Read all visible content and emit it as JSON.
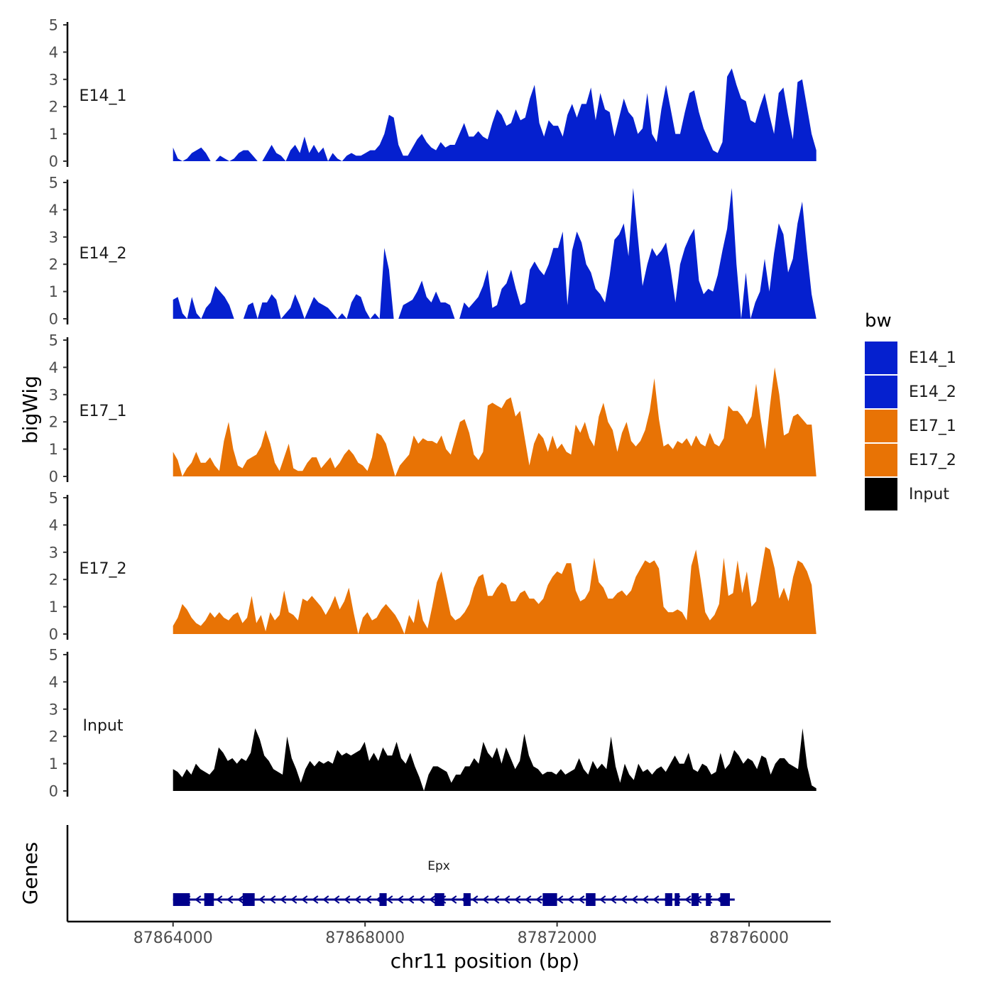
{
  "chart_data": {
    "type": "area",
    "chromosome": "chr11",
    "xlabel": "chr11 position (bp)",
    "ylabel": "bigWig",
    "genes_label": "Genes",
    "xlim": [
      87861800,
      87877700
    ],
    "data_range": [
      87864000,
      87877400
    ],
    "x_ticks": [
      87864000,
      87868000,
      87872000,
      87876000
    ],
    "x_tick_labels": [
      "87864000",
      "87868000",
      "87872000",
      "87876000"
    ],
    "ylim": [
      0,
      5
    ],
    "y_ticks": [
      0,
      1,
      2,
      3,
      4,
      5
    ],
    "colors": {
      "E14_1": "#0520CF",
      "E14_2": "#0520CF",
      "E17_1": "#E87305",
      "E17_2": "#E87305",
      "Input": "#000000",
      "gene": "#00008B"
    },
    "legend": {
      "title": "bw",
      "position": "right",
      "entries": [
        "E14_1",
        "E14_2",
        "E17_1",
        "E17_2",
        "Input"
      ]
    },
    "tracks": [
      {
        "name": "E14_1",
        "values": [
          0.5,
          0.1,
          0,
          0.1,
          0.3,
          0.4,
          0.5,
          0.3,
          0,
          0,
          0.2,
          0.1,
          0,
          0.1,
          0.3,
          0.4,
          0.4,
          0.2,
          0,
          0,
          0.3,
          0.6,
          0.3,
          0.2,
          0,
          0.4,
          0.6,
          0.3,
          0.9,
          0.3,
          0.6,
          0.3,
          0.5,
          0,
          0.3,
          0.1,
          0,
          0.2,
          0.3,
          0.2,
          0.2,
          0.3,
          0.4,
          0.4,
          0.6,
          1.0,
          1.7,
          1.6,
          0.6,
          0.2,
          0.2,
          0.5,
          0.8,
          1.0,
          0.7,
          0.5,
          0.4,
          0.7,
          0.5,
          0.6,
          0.6,
          1.0,
          1.4,
          0.9,
          0.9,
          1.1,
          0.9,
          0.8,
          1.4,
          1.9,
          1.7,
          1.3,
          1.4,
          1.9,
          1.5,
          1.6,
          2.3,
          2.8,
          1.4,
          0.9,
          1.5,
          1.3,
          1.3,
          0.9,
          1.7,
          2.1,
          1.6,
          2.1,
          2.1,
          2.7,
          1.5,
          2.5,
          1.9,
          1.8,
          0.9,
          1.6,
          2.3,
          1.8,
          1.6,
          1.0,
          1.2,
          2.5,
          1.0,
          0.7,
          1.9,
          2.8,
          1.9,
          1.0,
          1.0,
          1.8,
          2.5,
          2.6,
          1.8,
          1.2,
          0.8,
          0.4,
          0.3,
          0.7,
          3.1,
          3.4,
          2.8,
          2.3,
          2.2,
          1.5,
          1.4,
          2.0,
          2.5,
          1.7,
          1.0,
          2.5,
          2.7,
          1.7,
          0.8,
          2.9,
          3.0,
          2.0,
          1.0,
          0.4
        ]
      },
      {
        "name": "E14_2",
        "values": [
          0.7,
          0.8,
          0.2,
          0,
          0.8,
          0.2,
          0,
          0.4,
          0.6,
          1.2,
          1.0,
          0.8,
          0.5,
          0,
          0,
          0,
          0.5,
          0.6,
          0,
          0.6,
          0.6,
          0.9,
          0.7,
          0,
          0.2,
          0.4,
          0.9,
          0.5,
          0,
          0.4,
          0.8,
          0.6,
          0.5,
          0.4,
          0.2,
          0,
          0.2,
          0,
          0.6,
          0.9,
          0.8,
          0.3,
          0,
          0.2,
          0,
          2.6,
          1.8,
          0,
          0,
          0.5,
          0.6,
          0.7,
          1.0,
          1.4,
          0.8,
          0.6,
          1.0,
          0.6,
          0.6,
          0.5,
          0,
          0,
          0.6,
          0.4,
          0.6,
          0.8,
          1.2,
          1.8,
          0.4,
          0.5,
          1.1,
          1.3,
          1.8,
          1.1,
          0.5,
          0.6,
          1.8,
          2.1,
          1.8,
          1.6,
          2.0,
          2.6,
          2.6,
          3.2,
          0.5,
          2.5,
          3.2,
          2.8,
          2.0,
          1.7,
          1.1,
          0.9,
          0.6,
          1.6,
          2.9,
          3.1,
          3.5,
          2.3,
          4.8,
          3.0,
          1.2,
          2.0,
          2.6,
          2.3,
          2.5,
          2.8,
          1.8,
          0.6,
          2.0,
          2.6,
          3.0,
          3.3,
          1.4,
          0.9,
          1.1,
          1.0,
          1.6,
          2.5,
          3.3,
          4.8,
          2.0,
          0,
          1.7,
          0,
          0.6,
          1.0,
          2.2,
          1.0,
          2.4,
          3.5,
          3.1,
          1.7,
          2.2,
          3.5,
          4.3,
          2.5,
          0.9,
          0
        ]
      },
      {
        "name": "E17_1",
        "values": [
          0.9,
          0.6,
          0,
          0.3,
          0.5,
          0.9,
          0.5,
          0.5,
          0.7,
          0.4,
          0.2,
          1.3,
          2.0,
          1.0,
          0.4,
          0.3,
          0.6,
          0.7,
          0.8,
          1.1,
          1.7,
          1.2,
          0.5,
          0.2,
          0.7,
          1.2,
          0.3,
          0.2,
          0.2,
          0.5,
          0.7,
          0.7,
          0.3,
          0.5,
          0.7,
          0.3,
          0.5,
          0.8,
          1.0,
          0.8,
          0.5,
          0.4,
          0.2,
          0.7,
          1.6,
          1.5,
          1.2,
          0.6,
          0,
          0.4,
          0.6,
          0.8,
          1.5,
          1.2,
          1.4,
          1.3,
          1.3,
          1.2,
          1.5,
          1.0,
          0.8,
          1.4,
          2.0,
          2.1,
          1.6,
          0.8,
          0.6,
          0.9,
          2.6,
          2.7,
          2.6,
          2.5,
          2.8,
          2.9,
          2.2,
          2.4,
          1.4,
          0.4,
          1.2,
          1.6,
          1.4,
          0.9,
          1.5,
          1.0,
          1.2,
          0.9,
          0.8,
          1.9,
          1.6,
          2.0,
          1.4,
          1.1,
          2.2,
          2.7,
          2.0,
          1.7,
          0.9,
          1.6,
          2.0,
          1.3,
          1.1,
          1.3,
          1.7,
          2.4,
          3.6,
          2.1,
          1.1,
          1.2,
          1.0,
          1.3,
          1.2,
          1.4,
          1.1,
          1.5,
          1.2,
          1.1,
          1.6,
          1.2,
          1.1,
          1.4,
          2.6,
          2.4,
          2.4,
          2.2,
          1.9,
          2.2,
          3.4,
          2.1,
          1.0,
          2.6,
          4.0,
          3.0,
          1.5,
          1.6,
          2.2,
          2.3,
          2.1,
          1.9,
          1.9,
          0
        ]
      },
      {
        "name": "E17_2",
        "values": [
          0.3,
          0.6,
          1.1,
          0.9,
          0.6,
          0.4,
          0.3,
          0.5,
          0.8,
          0.6,
          0.8,
          0.6,
          0.5,
          0.7,
          0.8,
          0.4,
          0.6,
          1.4,
          0.4,
          0.7,
          0.1,
          0.8,
          0.5,
          0.7,
          1.6,
          0.8,
          0.7,
          0.5,
          1.3,
          1.2,
          1.4,
          1.2,
          1.0,
          0.7,
          1.0,
          1.4,
          0.9,
          1.2,
          1.7,
          0.8,
          0,
          0.6,
          0.8,
          0.5,
          0.6,
          0.9,
          1.1,
          0.9,
          0.7,
          0.4,
          0,
          0.7,
          0.4,
          1.3,
          0.5,
          0.2,
          1.0,
          1.9,
          2.3,
          1.5,
          0.7,
          0.5,
          0.6,
          0.8,
          1.1,
          1.7,
          2.1,
          2.2,
          1.4,
          1.4,
          1.7,
          1.9,
          1.8,
          1.2,
          1.2,
          1.5,
          1.6,
          1.3,
          1.3,
          1.1,
          1.3,
          1.8,
          2.1,
          2.3,
          2.2,
          2.6,
          2.6,
          1.6,
          1.2,
          1.3,
          1.6,
          2.8,
          1.9,
          1.7,
          1.3,
          1.3,
          1.5,
          1.6,
          1.4,
          1.6,
          2.1,
          2.4,
          2.7,
          2.6,
          2.7,
          2.4,
          1.0,
          0.8,
          0.8,
          0.9,
          0.8,
          0.5,
          2.5,
          3.1,
          2.0,
          0.8,
          0.5,
          0.7,
          1.1,
          2.8,
          1.4,
          1.5,
          2.7,
          1.5,
          2.3,
          1.0,
          1.2,
          2.2,
          3.2,
          3.1,
          2.4,
          1.3,
          1.7,
          1.2,
          2.1,
          2.7,
          2.6,
          2.3,
          1.8,
          0
        ]
      },
      {
        "name": "Input",
        "values": [
          0.8,
          0.7,
          0.5,
          0.8,
          0.6,
          1.0,
          0.8,
          0.7,
          0.6,
          0.8,
          1.6,
          1.4,
          1.1,
          1.2,
          1.0,
          1.2,
          1.1,
          1.4,
          2.3,
          1.9,
          1.3,
          1.1,
          0.8,
          0.7,
          0.6,
          2.0,
          1.2,
          0.8,
          0.3,
          0.8,
          1.1,
          0.9,
          1.1,
          1.0,
          1.1,
          1.0,
          1.5,
          1.3,
          1.4,
          1.3,
          1.4,
          1.5,
          1.8,
          1.1,
          1.4,
          1.1,
          1.6,
          1.3,
          1.3,
          1.8,
          1.2,
          1.0,
          1.4,
          0.9,
          0.5,
          0,
          0.6,
          0.9,
          0.9,
          0.8,
          0.7,
          0.3,
          0.6,
          0.6,
          0.9,
          0.9,
          1.2,
          1.0,
          1.8,
          1.4,
          1.2,
          1.6,
          1.0,
          1.6,
          1.2,
          0.8,
          1.1,
          2.1,
          1.3,
          0.9,
          0.8,
          0.6,
          0.7,
          0.7,
          0.6,
          0.8,
          0.6,
          0.7,
          0.8,
          1.2,
          0.8,
          0.6,
          1.1,
          0.8,
          1.0,
          0.8,
          2.0,
          0.9,
          0.3,
          1.0,
          0.6,
          0.4,
          1.0,
          0.7,
          0.8,
          0.6,
          0.8,
          0.9,
          0.7,
          1.0,
          1.3,
          1.0,
          1.0,
          1.4,
          0.8,
          0.7,
          1.0,
          0.9,
          0.6,
          0.7,
          1.4,
          0.8,
          1.0,
          1.5,
          1.3,
          1.0,
          1.2,
          1.1,
          0.8,
          1.3,
          1.2,
          0.6,
          1.0,
          1.2,
          1.2,
          1.0,
          0.9,
          0.8,
          2.3,
          0.9,
          0.2,
          0.1
        ]
      }
    ],
    "gene": {
      "name": "Epx",
      "strand": "-",
      "start": 87864000,
      "end": 87875700,
      "exons": [
        [
          87864000,
          87864350
        ],
        [
          87864650,
          87864850
        ],
        [
          87865450,
          87865700
        ],
        [
          87868300,
          87868450
        ],
        [
          87869450,
          87869650
        ],
        [
          87870050,
          87870200
        ],
        [
          87871700,
          87872000
        ],
        [
          87872600,
          87872800
        ],
        [
          87874250,
          87874400
        ],
        [
          87874450,
          87874550
        ],
        [
          87874800,
          87874950
        ],
        [
          87875100,
          87875200
        ],
        [
          87875400,
          87875600
        ]
      ]
    }
  }
}
